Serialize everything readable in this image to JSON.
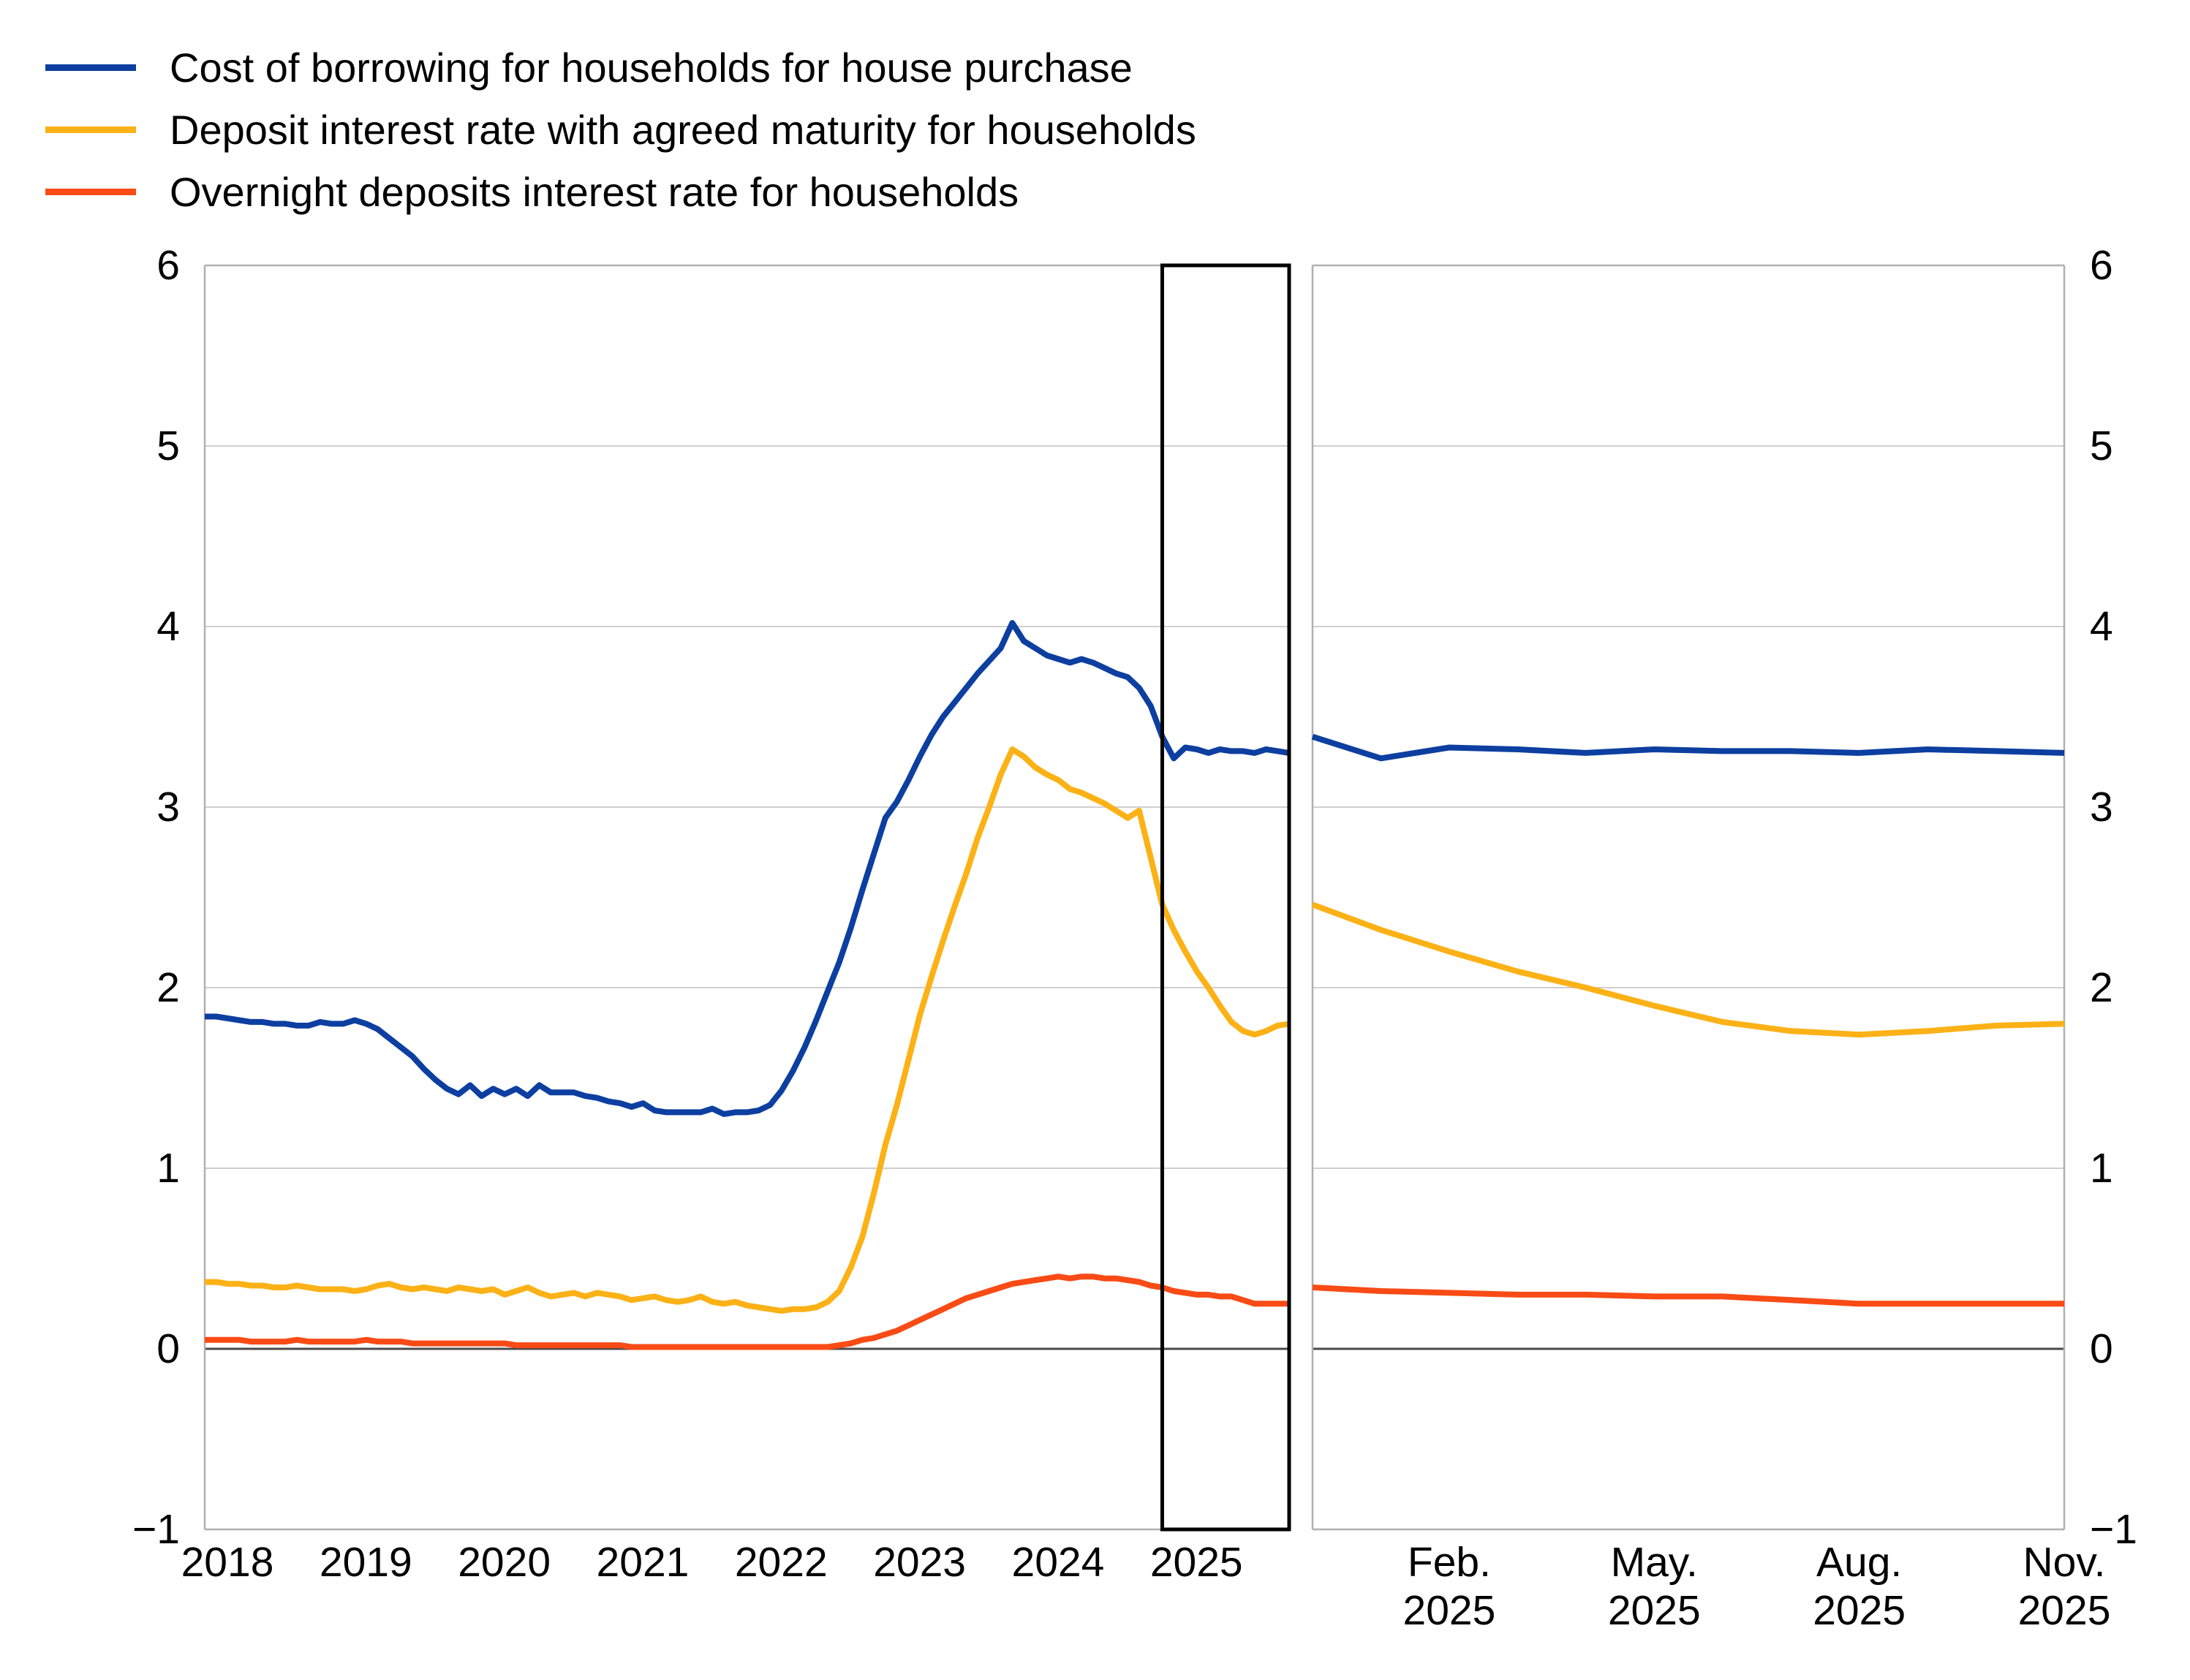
{
  "legend": {
    "items": [
      {
        "id": "cost_of_borrowing",
        "label": "Cost of borrowing for households for house purchase",
        "color": "#0d3fa0"
      },
      {
        "id": "deposit_agreed_maturity",
        "label": "Deposit interest rate with agreed maturity for households",
        "color": "#fcb116"
      },
      {
        "id": "overnight_deposits",
        "label": "Overnight deposits interest rate for households",
        "color": "#f94b15"
      }
    ]
  },
  "chart_data": {
    "type": "line",
    "title": "",
    "ylabel": "",
    "xlabel": "",
    "ylim": [
      -1,
      6
    ],
    "ytick_values": [
      6,
      5,
      4,
      3,
      2,
      1,
      0,
      -1
    ],
    "ytick_labels": [
      "6",
      "5",
      "4",
      "3",
      "2",
      "1",
      "0",
      "−1"
    ],
    "grid": "horizontal",
    "legend_position": "top-left",
    "left_panel": {
      "frequency": "monthly",
      "x_start": "2018-01",
      "x_end": "2025-11",
      "x_tick_labels": [
        "2018",
        "2019",
        "2020",
        "2021",
        "2022",
        "2023",
        "2024",
        "2025"
      ],
      "x_tick_month_indices": [
        0,
        12,
        24,
        36,
        48,
        60,
        72,
        84
      ],
      "highlight_box": {
        "from_month_index": 83,
        "to_month_index": 94
      },
      "series": [
        {
          "name": "cost_of_borrowing",
          "values": [
            1.84,
            1.84,
            1.83,
            1.82,
            1.81,
            1.81,
            1.8,
            1.8,
            1.79,
            1.79,
            1.81,
            1.8,
            1.8,
            1.82,
            1.8,
            1.77,
            1.72,
            1.67,
            1.62,
            1.55,
            1.49,
            1.44,
            1.41,
            1.46,
            1.4,
            1.44,
            1.41,
            1.44,
            1.4,
            1.46,
            1.42,
            1.42,
            1.42,
            1.4,
            1.39,
            1.37,
            1.36,
            1.34,
            1.36,
            1.32,
            1.31,
            1.31,
            1.31,
            1.31,
            1.33,
            1.3,
            1.31,
            1.31,
            1.32,
            1.35,
            1.43,
            1.54,
            1.67,
            1.82,
            1.98,
            2.14,
            2.33,
            2.54,
            2.74,
            2.94,
            3.03,
            3.15,
            3.28,
            3.4,
            3.5,
            3.58,
            3.66,
            3.74,
            3.81,
            3.88,
            4.02,
            3.92,
            3.88,
            3.84,
            3.82,
            3.8,
            3.82,
            3.8,
            3.77,
            3.74,
            3.72,
            3.66,
            3.56,
            3.39,
            3.27,
            3.33,
            3.32,
            3.3,
            3.32,
            3.31,
            3.31,
            3.3,
            3.32,
            3.31,
            3.3
          ]
        },
        {
          "name": "deposit_agreed_maturity",
          "values": [
            0.37,
            0.37,
            0.36,
            0.36,
            0.35,
            0.35,
            0.34,
            0.34,
            0.35,
            0.34,
            0.33,
            0.33,
            0.33,
            0.32,
            0.33,
            0.35,
            0.36,
            0.34,
            0.33,
            0.34,
            0.33,
            0.32,
            0.34,
            0.33,
            0.32,
            0.33,
            0.3,
            0.32,
            0.34,
            0.31,
            0.29,
            0.3,
            0.31,
            0.29,
            0.31,
            0.3,
            0.29,
            0.27,
            0.28,
            0.29,
            0.27,
            0.26,
            0.27,
            0.29,
            0.26,
            0.25,
            0.26,
            0.24,
            0.23,
            0.22,
            0.21,
            0.22,
            0.22,
            0.23,
            0.26,
            0.32,
            0.45,
            0.62,
            0.86,
            1.13,
            1.35,
            1.6,
            1.85,
            2.06,
            2.26,
            2.45,
            2.63,
            2.83,
            3.0,
            3.18,
            3.32,
            3.28,
            3.22,
            3.18,
            3.15,
            3.1,
            3.08,
            3.05,
            3.02,
            2.98,
            2.94,
            2.98,
            2.72,
            2.46,
            2.32,
            2.2,
            2.09,
            2.0,
            1.9,
            1.81,
            1.76,
            1.74,
            1.76,
            1.79,
            1.8
          ]
        },
        {
          "name": "overnight_deposits",
          "values": [
            0.05,
            0.05,
            0.05,
            0.05,
            0.04,
            0.04,
            0.04,
            0.04,
            0.05,
            0.04,
            0.04,
            0.04,
            0.04,
            0.04,
            0.05,
            0.04,
            0.04,
            0.04,
            0.03,
            0.03,
            0.03,
            0.03,
            0.03,
            0.03,
            0.03,
            0.03,
            0.03,
            0.02,
            0.02,
            0.02,
            0.02,
            0.02,
            0.02,
            0.02,
            0.02,
            0.02,
            0.02,
            0.01,
            0.01,
            0.01,
            0.01,
            0.01,
            0.01,
            0.01,
            0.01,
            0.01,
            0.01,
            0.01,
            0.01,
            0.01,
            0.01,
            0.01,
            0.01,
            0.01,
            0.01,
            0.02,
            0.03,
            0.05,
            0.06,
            0.08,
            0.1,
            0.13,
            0.16,
            0.19,
            0.22,
            0.25,
            0.28,
            0.3,
            0.32,
            0.34,
            0.36,
            0.37,
            0.38,
            0.39,
            0.4,
            0.39,
            0.4,
            0.4,
            0.39,
            0.39,
            0.38,
            0.37,
            0.35,
            0.34,
            0.32,
            0.31,
            0.3,
            0.3,
            0.29,
            0.29,
            0.27,
            0.25,
            0.25,
            0.25,
            0.25
          ]
        }
      ]
    },
    "right_panel": {
      "frequency": "monthly",
      "x_start": "2024-12",
      "x_end": "2025-11",
      "x_tick_labels": [
        [
          "Feb.",
          "2025"
        ],
        [
          "May.",
          "2025"
        ],
        [
          "Aug.",
          "2025"
        ],
        [
          "Nov.",
          "2025"
        ]
      ],
      "x_tick_month_indices": [
        2,
        5,
        8,
        11
      ],
      "series": [
        {
          "name": "cost_of_borrowing",
          "values": [
            3.39,
            3.27,
            3.33,
            3.32,
            3.3,
            3.32,
            3.31,
            3.31,
            3.3,
            3.32,
            3.31,
            3.3
          ]
        },
        {
          "name": "deposit_agreed_maturity",
          "values": [
            2.46,
            2.32,
            2.2,
            2.09,
            2.0,
            1.9,
            1.81,
            1.76,
            1.74,
            1.76,
            1.79,
            1.8
          ]
        },
        {
          "name": "overnight_deposits",
          "values": [
            0.34,
            0.32,
            0.31,
            0.3,
            0.3,
            0.29,
            0.29,
            0.27,
            0.25,
            0.25,
            0.25,
            0.25
          ]
        }
      ]
    }
  }
}
